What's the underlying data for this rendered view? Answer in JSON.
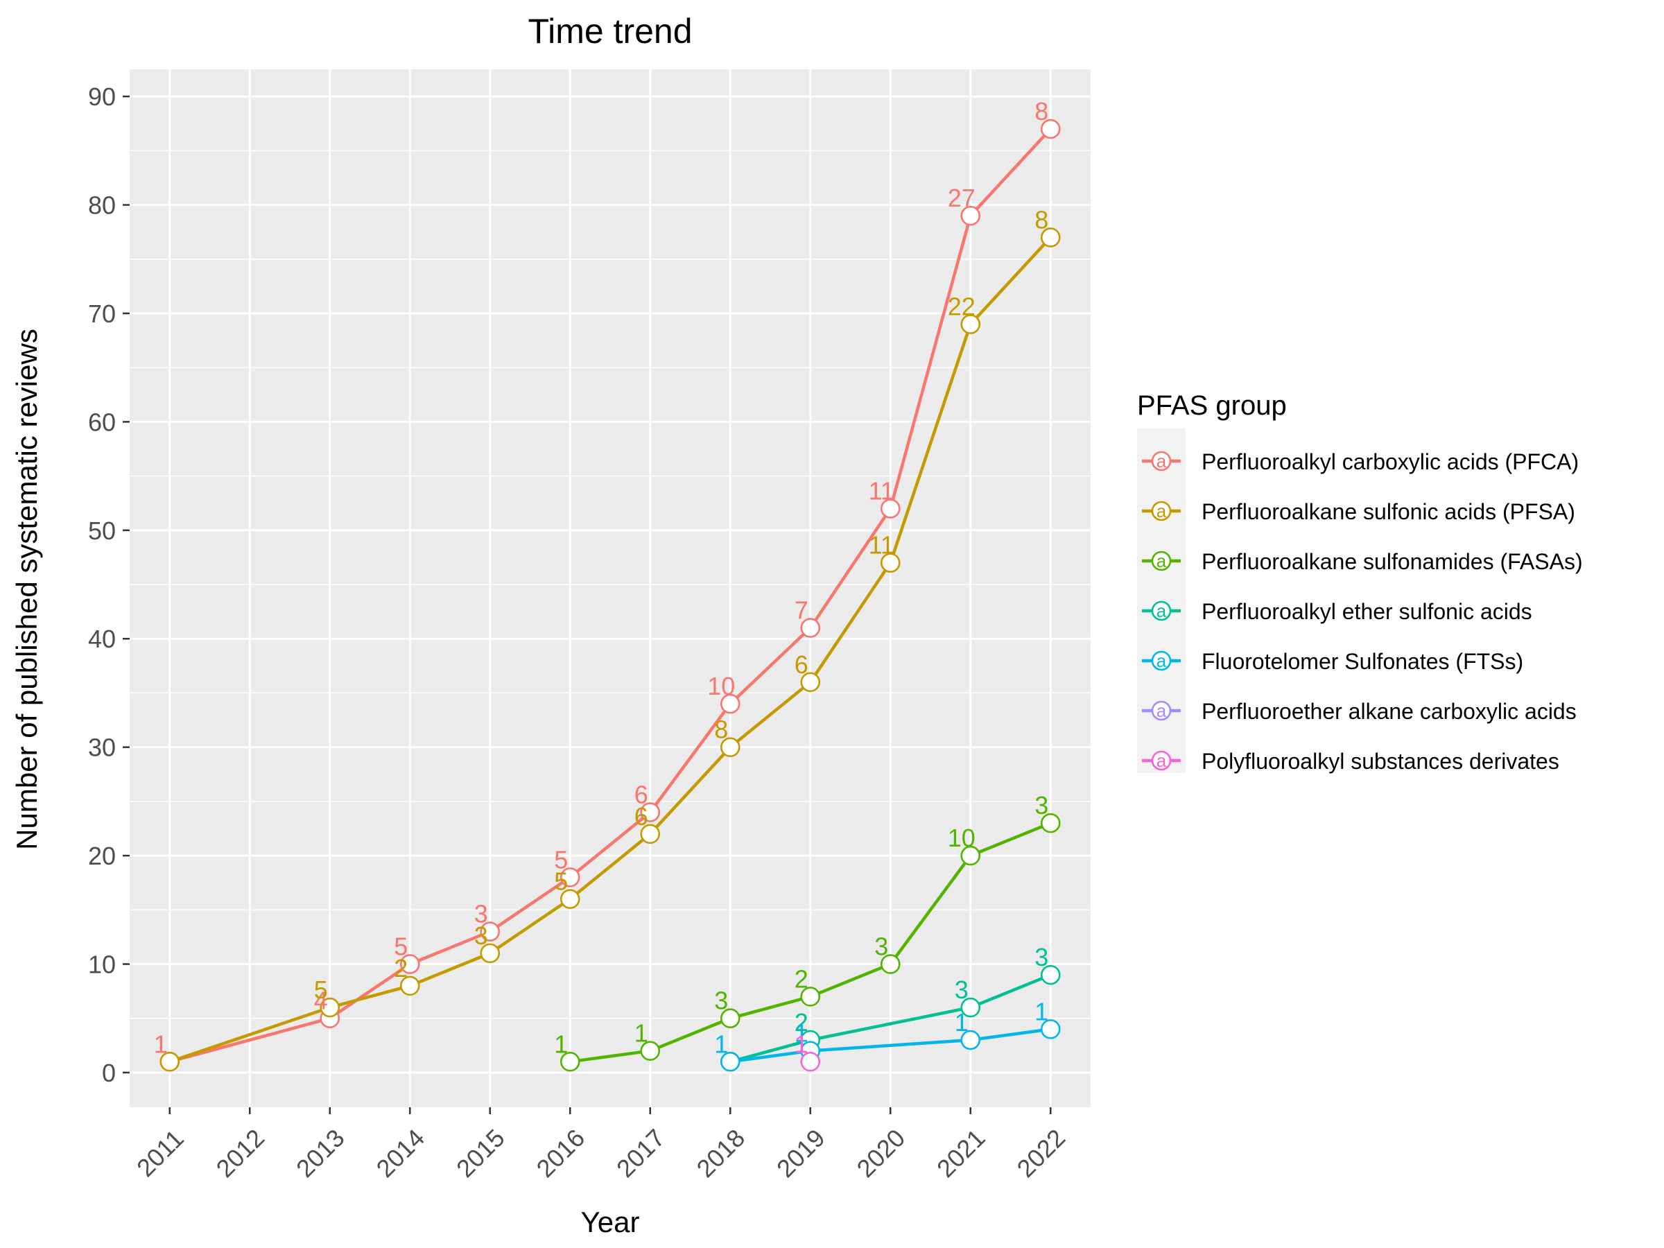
{
  "chart_data": {
    "type": "line",
    "title": "Time trend",
    "xlabel": "Year",
    "ylabel": "Number of published systematic reviews",
    "x_ticks": [
      "2011",
      "2012",
      "2013",
      "2014",
      "2015",
      "2016",
      "2017",
      "2018",
      "2019",
      "2020",
      "2021",
      "2022"
    ],
    "xlim": [
      2010.5,
      2022.5
    ],
    "y_ticks": [
      0,
      10,
      20,
      30,
      40,
      50,
      60,
      70,
      80,
      90
    ],
    "ylim": [
      -3.2,
      92.5
    ],
    "grid": true,
    "legend_title": "PFAS group",
    "legend_position": "right",
    "legend_glyph": "a",
    "series": [
      {
        "name": "Perfluoroalkyl carboxylic acids (PFCA)",
        "color": "#F8766D",
        "x": [
          2011,
          2013,
          2014,
          2015,
          2016,
          2017,
          2018,
          2019,
          2020,
          2021,
          2022
        ],
        "y": [
          1,
          5,
          10,
          13,
          18,
          24,
          34,
          41,
          52,
          79,
          87
        ],
        "labels": [
          "1",
          "4",
          "5",
          "3",
          "5",
          "6",
          "10",
          "7",
          "11",
          "27",
          "8"
        ]
      },
      {
        "name": "Perfluoroalkane sulfonic acids (PFSA)",
        "color": "#C49A00",
        "x": [
          2011,
          2013,
          2014,
          2015,
          2016,
          2017,
          2018,
          2019,
          2020,
          2021,
          2022
        ],
        "y": [
          1,
          6,
          8,
          11,
          16,
          22,
          30,
          36,
          47,
          69,
          77
        ],
        "labels": [
          "",
          "5",
          "2",
          "3",
          "5",
          "6",
          "8",
          "6",
          "11",
          "22",
          "8"
        ]
      },
      {
        "name": "Perfluoroalkane sulfonamides (FASAs)",
        "color": "#53B400",
        "x": [
          2016,
          2017,
          2018,
          2019,
          2020,
          2021,
          2022
        ],
        "y": [
          1,
          2,
          5,
          7,
          10,
          20,
          23
        ],
        "labels": [
          "1",
          "1",
          "3",
          "2",
          "3",
          "10",
          "3"
        ]
      },
      {
        "name": "Perfluoroalkyl ether sulfonic acids",
        "color": "#00C094",
        "x": [
          2018,
          2019,
          2021,
          2022
        ],
        "y": [
          1,
          3,
          6,
          9
        ],
        "labels": [
          "",
          "2",
          "3",
          "3"
        ]
      },
      {
        "name": "Fluorotelomer Sulfonates (FTSs)",
        "color": "#00B6EB",
        "x": [
          2018,
          2019,
          2021,
          2022
        ],
        "y": [
          1,
          2,
          3,
          4
        ],
        "labels": [
          "1",
          "1",
          "1",
          "1"
        ]
      },
      {
        "name": "Perfluoroether alkane carboxylic acids",
        "color": "#A58AFF",
        "x": [],
        "y": [],
        "labels": []
      },
      {
        "name": "Polyfluoroalkyl substances derivates",
        "color": "#FB61D7",
        "x": [
          2019
        ],
        "y": [
          1
        ],
        "labels": [
          "1"
        ]
      }
    ]
  },
  "colors": {
    "panel_background": "#EBEBEB",
    "grid_line": "#FFFFFF",
    "axis_text": "#4D4D4D",
    "title_text": "#000000"
  }
}
